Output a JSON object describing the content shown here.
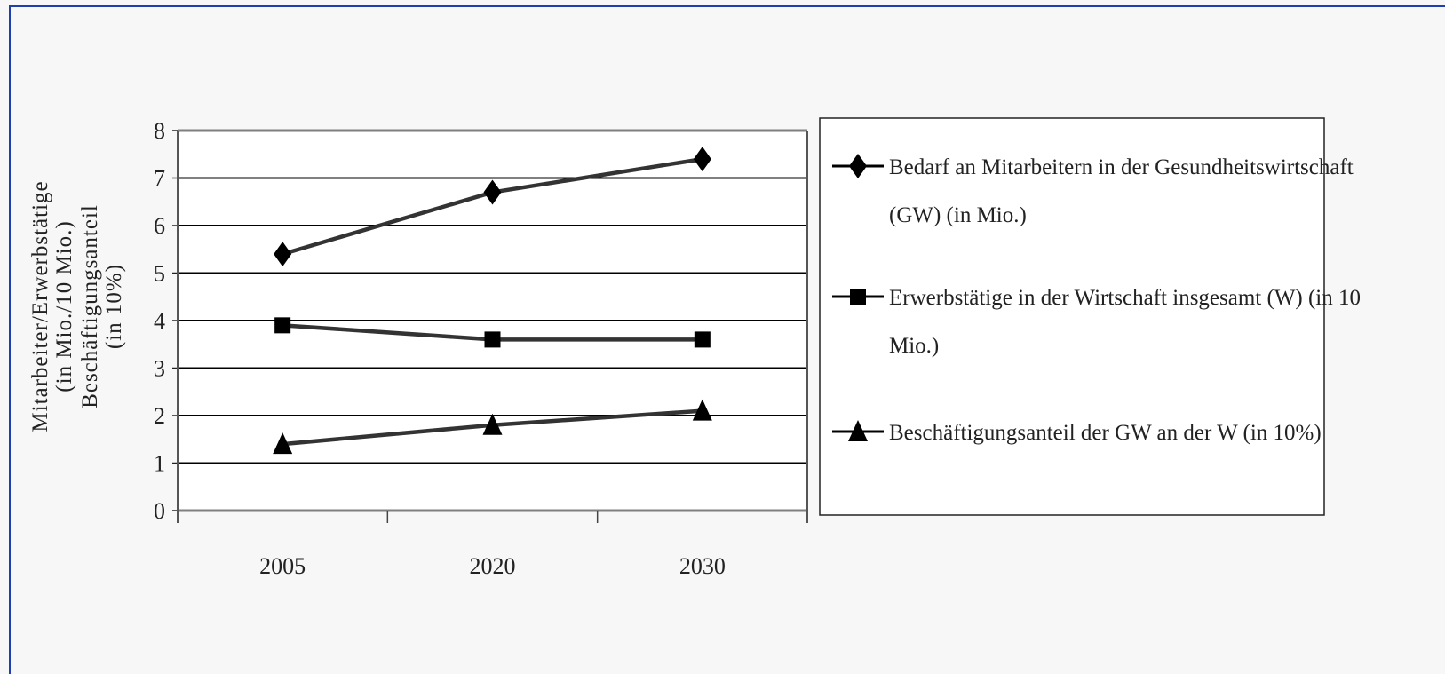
{
  "chart_data": {
    "type": "line",
    "title": "",
    "categories": [
      "2005",
      "2020",
      "2030"
    ],
    "ylabel_lines": [
      "Mitarbeiter/Erwerbstätige",
      "(in Mio./10 Mio.)",
      "Beschäftigungsanteil",
      "(in 10%)"
    ],
    "ylim": [
      0,
      8
    ],
    "yticks": [
      "0",
      "1",
      "2",
      "3",
      "4",
      "5",
      "6",
      "7",
      "8"
    ],
    "grid": true,
    "legend_position": "right",
    "series": [
      {
        "name": "Bedarf an Mitarbeitern in der Gesundheitswirtschaft (GW) (in Mio.)",
        "legend_lines": [
          "Bedarf an Mitarbeitern in der Gesundheitswirtschaft",
          "(GW) (in Mio.)"
        ],
        "marker": "diamond",
        "values": [
          5.4,
          6.7,
          7.4
        ]
      },
      {
        "name": "Erwerbstätige in der Wirtschaft insgesamt (W) (in 10 Mio.)",
        "legend_lines": [
          "Erwerbstätige in der Wirtschaft insgesamt (W) (in 10",
          "Mio.)"
        ],
        "marker": "square",
        "values": [
          3.9,
          3.6,
          3.6
        ]
      },
      {
        "name": "Beschäftigungsanteil der GW an der W (in 10%)",
        "legend_lines": [
          "Beschäftigungsanteil der GW an der W (in 10%)"
        ],
        "marker": "triangle",
        "values": [
          1.4,
          1.8,
          2.1
        ]
      }
    ],
    "colors": {
      "line": "#000000",
      "grid": "#000000",
      "frame": "#1f3fb0",
      "background": "#f7f7f7",
      "plot_background": "#ffffff"
    }
  }
}
